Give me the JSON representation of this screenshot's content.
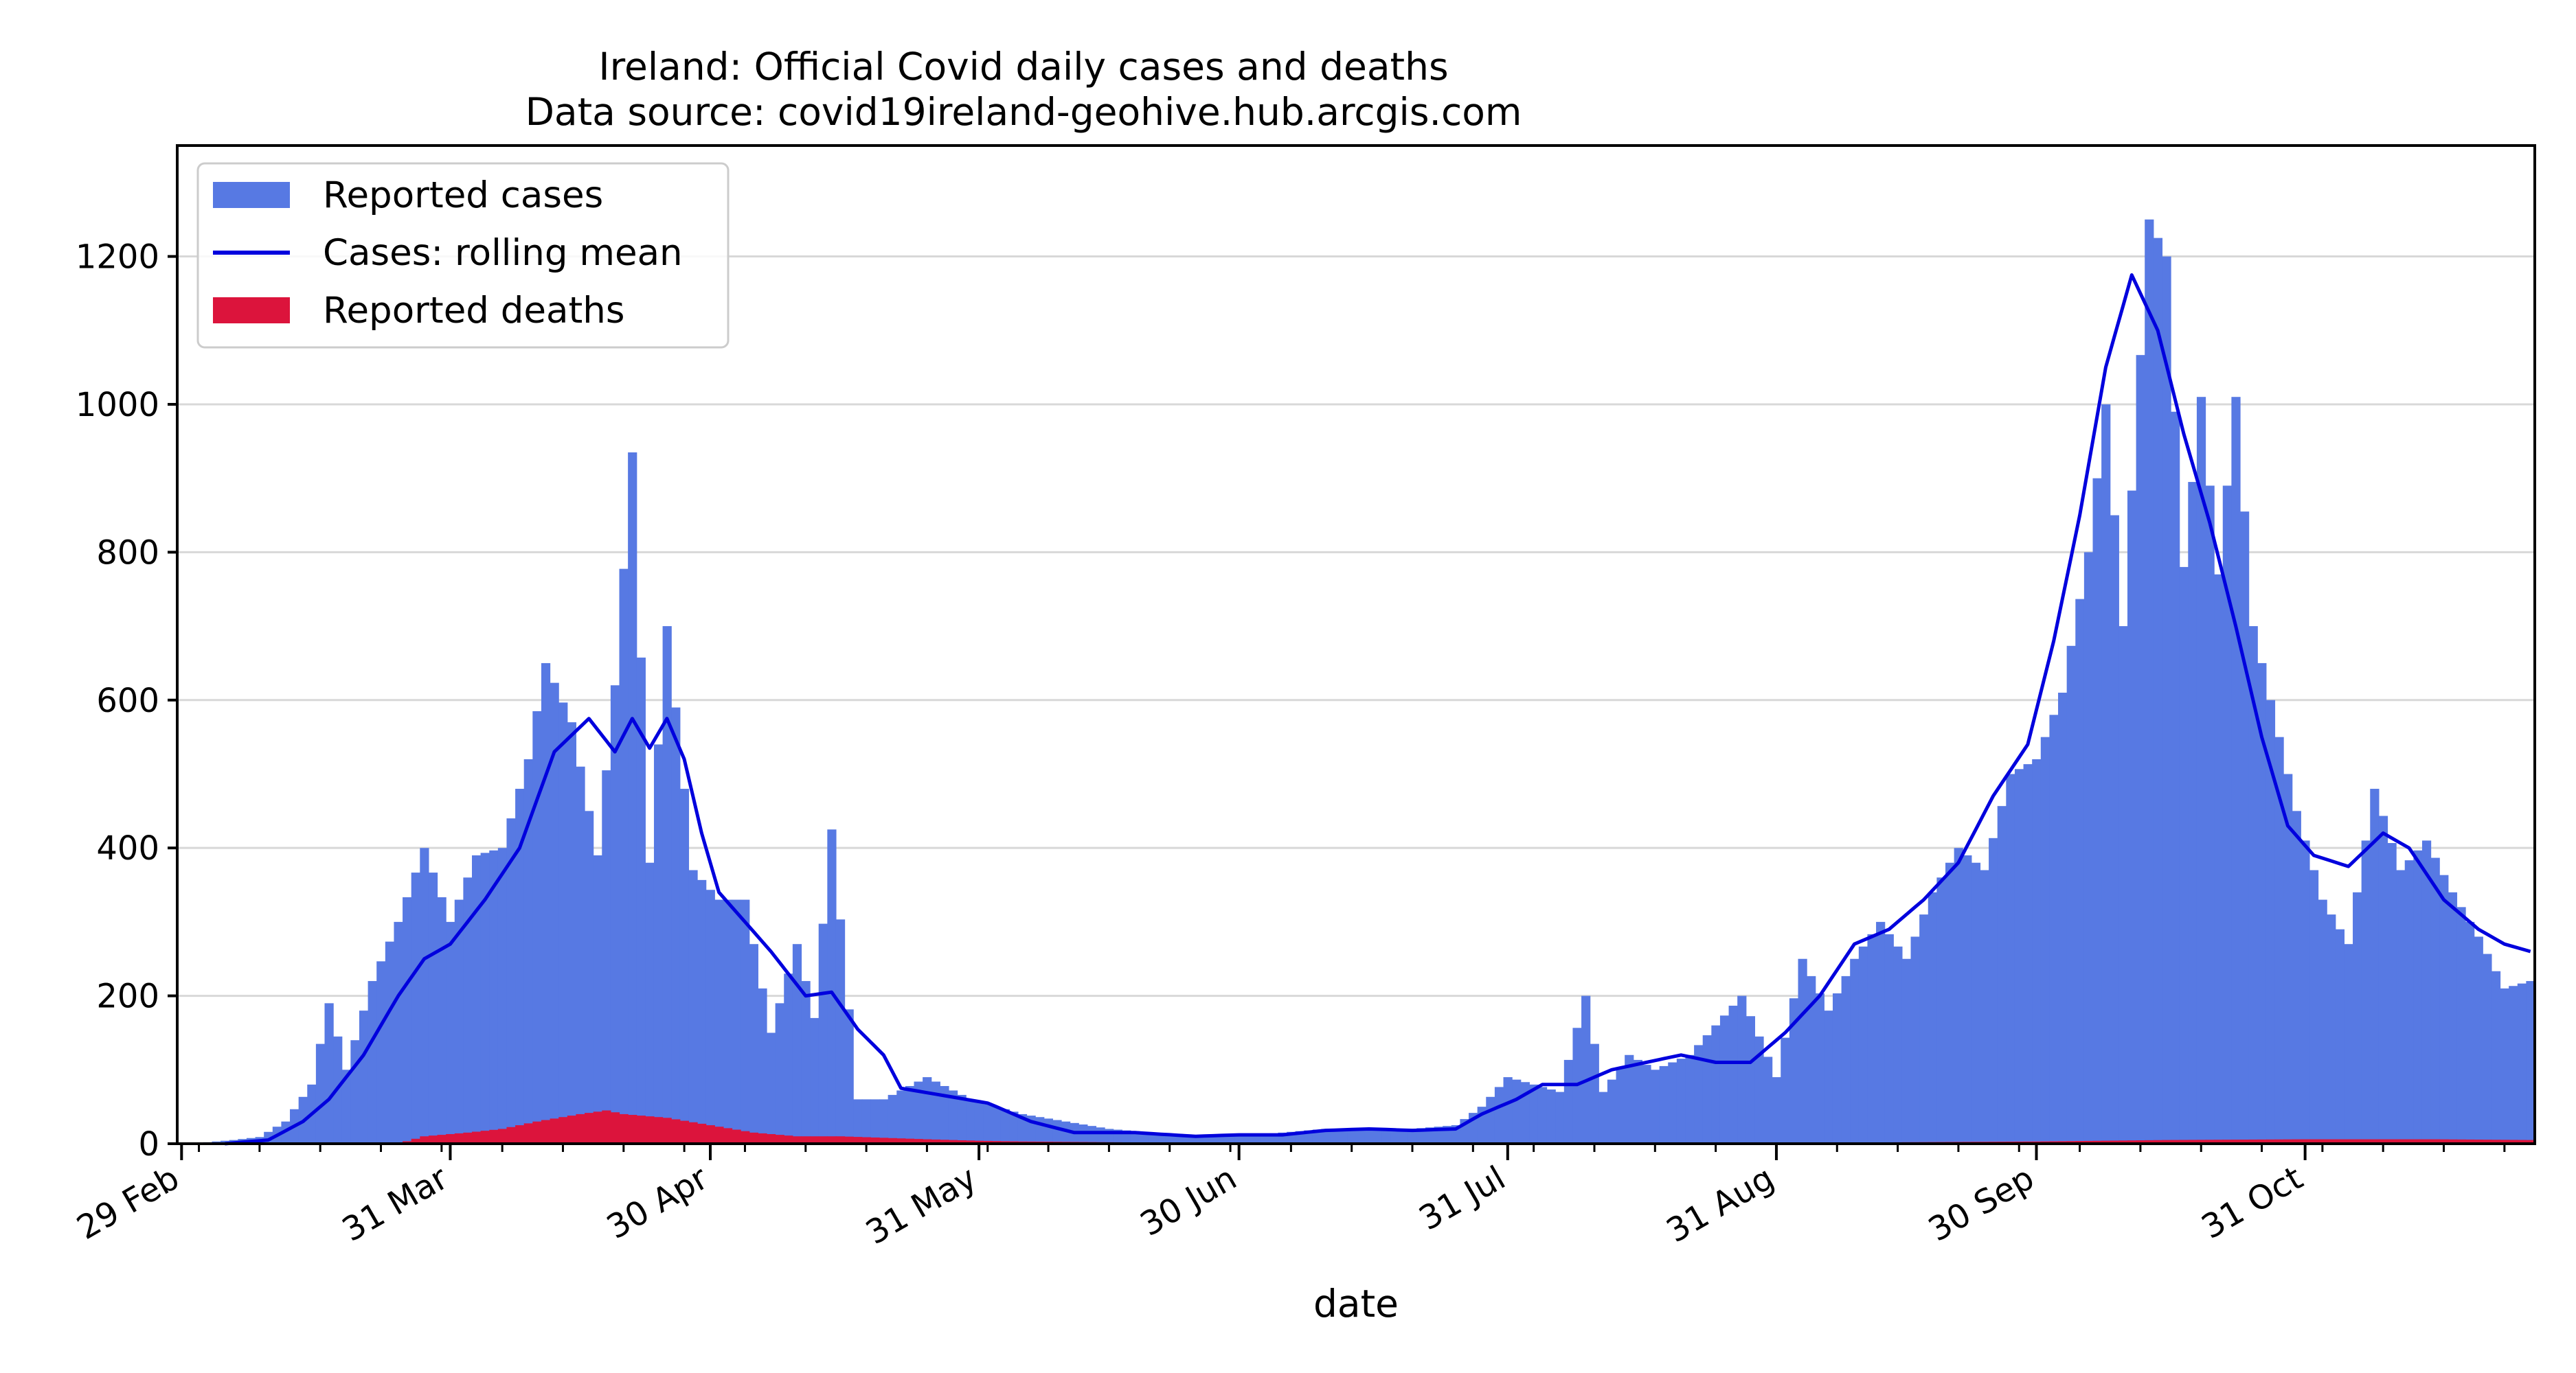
{
  "chart_data": {
    "type": "bar",
    "title": "Ireland: Official Covid daily cases and deaths",
    "subtitle": "Data source: covid19ireland-geohive.hub.arcgis.com",
    "xlabel": "date",
    "ylabel": "",
    "x_start": "2020-02-29",
    "x_end": "2020-11-26",
    "ylim": [
      0,
      1350
    ],
    "yticks": [
      0,
      200,
      400,
      600,
      800,
      1000,
      1200
    ],
    "xticks": [
      {
        "date": "2020-02-29",
        "label": "29 Feb"
      },
      {
        "date": "2020-03-31",
        "label": "31 Mar"
      },
      {
        "date": "2020-04-30",
        "label": "30 Apr"
      },
      {
        "date": "2020-05-31",
        "label": "31 May"
      },
      {
        "date": "2020-06-30",
        "label": "30 Jun"
      },
      {
        "date": "2020-07-31",
        "label": "31 Jul"
      },
      {
        "date": "2020-08-31",
        "label": "31 Aug"
      },
      {
        "date": "2020-09-30",
        "label": "30 Sep"
      },
      {
        "date": "2020-10-31",
        "label": "31 Oct"
      }
    ],
    "grid": true,
    "legend_position": "top-left",
    "series": [
      {
        "name": "Reported cases",
        "kind": "bar",
        "color": "#5779e3",
        "anchors": [
          [
            "2020-02-29",
            0
          ],
          [
            "2020-03-03",
            2
          ],
          [
            "2020-03-06",
            5
          ],
          [
            "2020-03-09",
            9
          ],
          [
            "2020-03-12",
            30
          ],
          [
            "2020-03-15",
            80
          ],
          [
            "2020-03-17",
            190
          ],
          [
            "2020-03-19",
            100
          ],
          [
            "2020-03-22",
            220
          ],
          [
            "2020-03-25",
            300
          ],
          [
            "2020-03-28",
            400
          ],
          [
            "2020-03-31",
            300
          ],
          [
            "2020-04-03",
            390
          ],
          [
            "2020-04-06",
            400
          ],
          [
            "2020-04-09",
            520
          ],
          [
            "2020-04-11",
            650
          ],
          [
            "2020-04-14",
            570
          ],
          [
            "2020-04-17",
            390
          ],
          [
            "2020-04-19",
            620
          ],
          [
            "2020-04-21",
            935
          ],
          [
            "2020-04-23",
            380
          ],
          [
            "2020-04-25",
            700
          ],
          [
            "2020-04-28",
            370
          ],
          [
            "2020-05-01",
            330
          ],
          [
            "2020-05-04",
            330
          ],
          [
            "2020-05-07",
            150
          ],
          [
            "2020-05-10",
            270
          ],
          [
            "2020-05-12",
            170
          ],
          [
            "2020-05-14",
            425
          ],
          [
            "2020-05-17",
            60
          ],
          [
            "2020-05-20",
            60
          ],
          [
            "2020-05-25",
            90
          ],
          [
            "2020-05-30",
            60
          ],
          [
            "2020-06-05",
            40
          ],
          [
            "2020-06-10",
            30
          ],
          [
            "2020-06-15",
            20
          ],
          [
            "2020-06-20",
            15
          ],
          [
            "2020-06-25",
            12
          ],
          [
            "2020-06-30",
            10
          ],
          [
            "2020-07-05",
            15
          ],
          [
            "2020-07-10",
            20
          ],
          [
            "2020-07-15",
            20
          ],
          [
            "2020-07-20",
            20
          ],
          [
            "2020-07-25",
            25
          ],
          [
            "2020-07-28",
            50
          ],
          [
            "2020-07-31",
            90
          ],
          [
            "2020-08-03",
            80
          ],
          [
            "2020-08-06",
            70
          ],
          [
            "2020-08-09",
            200
          ],
          [
            "2020-08-11",
            70
          ],
          [
            "2020-08-14",
            120
          ],
          [
            "2020-08-17",
            100
          ],
          [
            "2020-08-21",
            120
          ],
          [
            "2020-08-24",
            160
          ],
          [
            "2020-08-27",
            200
          ],
          [
            "2020-08-31",
            90
          ],
          [
            "2020-09-03",
            250
          ],
          [
            "2020-09-06",
            180
          ],
          [
            "2020-09-09",
            250
          ],
          [
            "2020-09-12",
            300
          ],
          [
            "2020-09-15",
            250
          ],
          [
            "2020-09-18",
            340
          ],
          [
            "2020-09-21",
            400
          ],
          [
            "2020-09-24",
            370
          ],
          [
            "2020-09-27",
            500
          ],
          [
            "2020-09-30",
            520
          ],
          [
            "2020-10-03",
            610
          ],
          [
            "2020-10-06",
            800
          ],
          [
            "2020-10-08",
            1000
          ],
          [
            "2020-10-10",
            700
          ],
          [
            "2020-10-13",
            1250
          ],
          [
            "2020-10-15",
            1200
          ],
          [
            "2020-10-17",
            780
          ],
          [
            "2020-10-19",
            1010
          ],
          [
            "2020-10-21",
            770
          ],
          [
            "2020-10-23",
            1010
          ],
          [
            "2020-10-25",
            700
          ],
          [
            "2020-10-27",
            600
          ],
          [
            "2020-10-30",
            450
          ],
          [
            "2020-11-02",
            330
          ],
          [
            "2020-11-05",
            270
          ],
          [
            "2020-11-08",
            480
          ],
          [
            "2020-11-11",
            370
          ],
          [
            "2020-11-14",
            410
          ],
          [
            "2020-11-17",
            340
          ],
          [
            "2020-11-20",
            280
          ],
          [
            "2020-11-23",
            210
          ],
          [
            "2020-11-26",
            220
          ]
        ]
      },
      {
        "name": "Cases: rolling mean",
        "kind": "line",
        "color": "#0000dd",
        "anchors": [
          [
            "2020-03-05",
            0
          ],
          [
            "2020-03-10",
            5
          ],
          [
            "2020-03-14",
            30
          ],
          [
            "2020-03-17",
            60
          ],
          [
            "2020-03-21",
            120
          ],
          [
            "2020-03-25",
            200
          ],
          [
            "2020-03-28",
            250
          ],
          [
            "2020-03-31",
            270
          ],
          [
            "2020-04-04",
            330
          ],
          [
            "2020-04-08",
            400
          ],
          [
            "2020-04-12",
            530
          ],
          [
            "2020-04-16",
            575
          ],
          [
            "2020-04-19",
            530
          ],
          [
            "2020-04-21",
            575
          ],
          [
            "2020-04-23",
            535
          ],
          [
            "2020-04-25",
            575
          ],
          [
            "2020-04-27",
            520
          ],
          [
            "2020-04-29",
            420
          ],
          [
            "2020-05-01",
            340
          ],
          [
            "2020-05-04",
            300
          ],
          [
            "2020-05-07",
            260
          ],
          [
            "2020-05-11",
            200
          ],
          [
            "2020-05-14",
            205
          ],
          [
            "2020-05-17",
            155
          ],
          [
            "2020-05-20",
            120
          ],
          [
            "2020-05-22",
            75
          ],
          [
            "2020-05-27",
            65
          ],
          [
            "2020-06-01",
            55
          ],
          [
            "2020-06-06",
            30
          ],
          [
            "2020-06-11",
            15
          ],
          [
            "2020-06-18",
            15
          ],
          [
            "2020-06-25",
            10
          ],
          [
            "2020-06-30",
            12
          ],
          [
            "2020-07-05",
            12
          ],
          [
            "2020-07-10",
            18
          ],
          [
            "2020-07-15",
            20
          ],
          [
            "2020-07-20",
            18
          ],
          [
            "2020-07-25",
            20
          ],
          [
            "2020-07-28",
            40
          ],
          [
            "2020-08-01",
            60
          ],
          [
            "2020-08-04",
            80
          ],
          [
            "2020-08-08",
            80
          ],
          [
            "2020-08-12",
            100
          ],
          [
            "2020-08-16",
            110
          ],
          [
            "2020-08-20",
            120
          ],
          [
            "2020-08-24",
            110
          ],
          [
            "2020-08-28",
            110
          ],
          [
            "2020-09-01",
            150
          ],
          [
            "2020-09-05",
            200
          ],
          [
            "2020-09-09",
            270
          ],
          [
            "2020-09-13",
            290
          ],
          [
            "2020-09-17",
            330
          ],
          [
            "2020-09-21",
            380
          ],
          [
            "2020-09-25",
            470
          ],
          [
            "2020-09-29",
            540
          ],
          [
            "2020-10-02",
            680
          ],
          [
            "2020-10-05",
            850
          ],
          [
            "2020-10-08",
            1050
          ],
          [
            "2020-10-11",
            1175
          ],
          [
            "2020-10-14",
            1100
          ],
          [
            "2020-10-17",
            960
          ],
          [
            "2020-10-20",
            840
          ],
          [
            "2020-10-23",
            700
          ],
          [
            "2020-10-26",
            550
          ],
          [
            "2020-10-29",
            430
          ],
          [
            "2020-11-01",
            390
          ],
          [
            "2020-11-05",
            375
          ],
          [
            "2020-11-09",
            420
          ],
          [
            "2020-11-12",
            400
          ],
          [
            "2020-11-16",
            330
          ],
          [
            "2020-11-20",
            290
          ],
          [
            "2020-11-23",
            270
          ],
          [
            "2020-11-26",
            260
          ]
        ]
      },
      {
        "name": "Reported deaths",
        "kind": "bar",
        "color": "#dc143c",
        "anchors": [
          [
            "2020-02-29",
            0
          ],
          [
            "2020-03-25",
            0
          ],
          [
            "2020-03-28",
            10
          ],
          [
            "2020-04-02",
            15
          ],
          [
            "2020-04-06",
            20
          ],
          [
            "2020-04-10",
            30
          ],
          [
            "2020-04-15",
            40
          ],
          [
            "2020-04-18",
            45
          ],
          [
            "2020-04-20",
            40
          ],
          [
            "2020-04-25",
            35
          ],
          [
            "2020-04-30",
            25
          ],
          [
            "2020-05-05",
            15
          ],
          [
            "2020-05-10",
            10
          ],
          [
            "2020-05-15",
            10
          ],
          [
            "2020-05-20",
            8
          ],
          [
            "2020-05-25",
            6
          ],
          [
            "2020-05-31",
            4
          ],
          [
            "2020-06-05",
            3
          ],
          [
            "2020-06-15",
            2
          ],
          [
            "2020-06-30",
            1
          ],
          [
            "2020-07-15",
            1
          ],
          [
            "2020-07-31",
            0
          ],
          [
            "2020-08-31",
            1
          ],
          [
            "2020-09-15",
            2
          ],
          [
            "2020-09-30",
            3
          ],
          [
            "2020-10-15",
            5
          ],
          [
            "2020-10-31",
            6
          ],
          [
            "2020-11-15",
            6
          ],
          [
            "2020-11-26",
            5
          ]
        ]
      }
    ]
  }
}
